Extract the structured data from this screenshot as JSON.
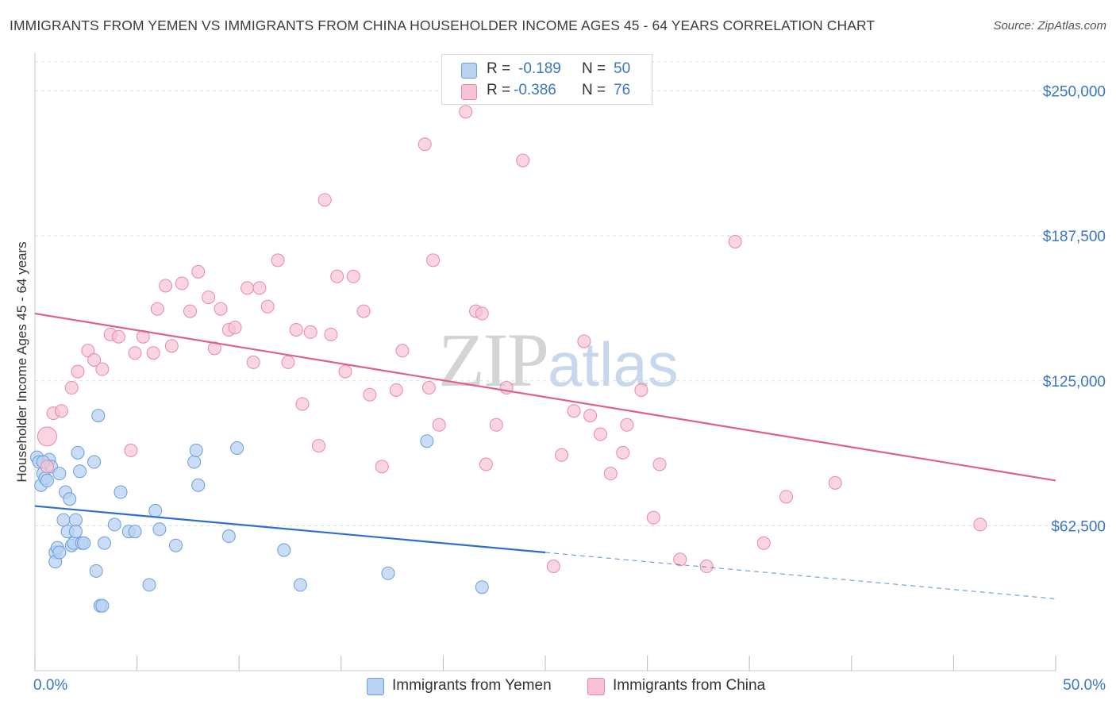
{
  "title": "IMMIGRANTS FROM YEMEN VS IMMIGRANTS FROM CHINA HOUSEHOLDER INCOME AGES 45 - 64 YEARS CORRELATION CHART",
  "source": "Source: ZipAtlas.com",
  "watermark": {
    "zip": "ZIP",
    "atlas": "atlas"
  },
  "legend": {
    "r_label": "R =",
    "n_label": "N =",
    "yemen": {
      "r": "-0.189",
      "n": "50"
    },
    "china": {
      "r": "-0.386",
      "n": "76"
    }
  },
  "colors": {
    "yemen_fill": "#b8d2f2",
    "yemen_stroke": "#6a9fdc",
    "yemen_line": "#2f6fcc",
    "china_fill": "#f7c3d3",
    "china_stroke": "#e889a8",
    "china_line": "#e0608a",
    "tick_text": "#3b78c3",
    "grid": "#dddddd"
  },
  "chart_data": {
    "type": "scatter",
    "title": "IMMIGRANTS FROM YEMEN VS IMMIGRANTS FROM CHINA HOUSEHOLDER INCOME AGES 45 - 64 YEARS CORRELATION CHART",
    "xlabel": "",
    "ylabel": "Householder Income Ages 45 - 64 years",
    "xlim": [
      0,
      50
    ],
    "ylim": [
      0,
      262500
    ],
    "x_tick_labels": [
      "0.0%",
      "50.0%"
    ],
    "y_ticks": [
      62500,
      125000,
      187500,
      250000
    ],
    "y_tick_labels": [
      "$62,500",
      "$125,000",
      "$187,500",
      "$250,000"
    ],
    "grid": true,
    "legend_position": "top-center and bottom",
    "series": [
      {
        "name": "Immigrants from Yemen",
        "r": -0.189,
        "n": 50,
        "trend": {
          "x_start": 0,
          "y_start": 71000,
          "x_solid_end": 25,
          "y_solid_end": 51000,
          "x_dash_end": 50,
          "y_dash_end": 31000
        },
        "points": [
          [
            0.1,
            92000
          ],
          [
            0.2,
            90000
          ],
          [
            0.3,
            80000
          ],
          [
            0.4,
            85000
          ],
          [
            0.5,
            83000
          ],
          [
            0.6,
            82000
          ],
          [
            0.7,
            91000
          ],
          [
            0.8,
            88000
          ],
          [
            1.0,
            51000
          ],
          [
            1.0,
            47000
          ],
          [
            1.1,
            53000
          ],
          [
            1.2,
            85000
          ],
          [
            1.2,
            51000
          ],
          [
            1.4,
            65000
          ],
          [
            1.5,
            77000
          ],
          [
            1.6,
            60000
          ],
          [
            1.7,
            74000
          ],
          [
            1.8,
            54000
          ],
          [
            1.9,
            55000
          ],
          [
            2.0,
            65000
          ],
          [
            2.0,
            60000
          ],
          [
            2.1,
            94000
          ],
          [
            2.2,
            86000
          ],
          [
            2.3,
            55000
          ],
          [
            2.4,
            55000
          ],
          [
            2.9,
            90000
          ],
          [
            3.0,
            43000
          ],
          [
            3.1,
            110000
          ],
          [
            3.2,
            28000
          ],
          [
            3.3,
            28000
          ],
          [
            3.4,
            55000
          ],
          [
            3.9,
            63000
          ],
          [
            4.2,
            77000
          ],
          [
            4.6,
            60000
          ],
          [
            4.9,
            60000
          ],
          [
            5.6,
            37000
          ],
          [
            5.9,
            69000
          ],
          [
            6.1,
            61000
          ],
          [
            6.9,
            54000
          ],
          [
            7.8,
            90000
          ],
          [
            7.9,
            95000
          ],
          [
            8.0,
            80000
          ],
          [
            9.5,
            58000
          ],
          [
            9.9,
            96000
          ],
          [
            12.2,
            52000
          ],
          [
            13.0,
            37000
          ],
          [
            17.3,
            42000
          ],
          [
            19.2,
            99000
          ],
          [
            21.9,
            36000
          ],
          [
            0.4,
            90000
          ]
        ]
      },
      {
        "name": "Immigrants from China",
        "r": -0.386,
        "n": 76,
        "trend": {
          "x_start": 0,
          "y_start": 154000,
          "x_end": 50,
          "y_end": 82000
        },
        "points": [
          [
            0.6,
            101000
          ],
          [
            0.6,
            88000
          ],
          [
            0.9,
            111000
          ],
          [
            1.3,
            112000
          ],
          [
            1.8,
            122000
          ],
          [
            2.1,
            129000
          ],
          [
            2.6,
            138000
          ],
          [
            2.9,
            134000
          ],
          [
            3.3,
            130000
          ],
          [
            3.7,
            145000
          ],
          [
            4.1,
            144000
          ],
          [
            4.7,
            95000
          ],
          [
            4.9,
            137000
          ],
          [
            5.3,
            144000
          ],
          [
            5.8,
            137000
          ],
          [
            6.0,
            156000
          ],
          [
            6.4,
            166000
          ],
          [
            6.7,
            140000
          ],
          [
            7.2,
            167000
          ],
          [
            7.6,
            155000
          ],
          [
            8.0,
            172000
          ],
          [
            8.5,
            161000
          ],
          [
            8.8,
            139000
          ],
          [
            9.1,
            156000
          ],
          [
            9.5,
            147000
          ],
          [
            9.8,
            148000
          ],
          [
            10.4,
            165000
          ],
          [
            10.7,
            133000
          ],
          [
            11.0,
            165000
          ],
          [
            11.4,
            157000
          ],
          [
            11.9,
            177000
          ],
          [
            12.4,
            133000
          ],
          [
            12.8,
            147000
          ],
          [
            13.1,
            115000
          ],
          [
            13.5,
            146000
          ],
          [
            13.9,
            97000
          ],
          [
            14.2,
            203000
          ],
          [
            14.5,
            145000
          ],
          [
            14.8,
            170000
          ],
          [
            15.2,
            129000
          ],
          [
            15.6,
            170000
          ],
          [
            16.1,
            155000
          ],
          [
            16.4,
            119000
          ],
          [
            17.0,
            88000
          ],
          [
            17.7,
            121000
          ],
          [
            18.0,
            138000
          ],
          [
            19.1,
            227000
          ],
          [
            19.3,
            122000
          ],
          [
            19.5,
            177000
          ],
          [
            19.8,
            106000
          ],
          [
            21.1,
            241000
          ],
          [
            21.6,
            155000
          ],
          [
            21.9,
            154000
          ],
          [
            22.1,
            89000
          ],
          [
            22.6,
            106000
          ],
          [
            23.1,
            122000
          ],
          [
            23.9,
            220000
          ],
          [
            25.4,
            45000
          ],
          [
            25.8,
            93000
          ],
          [
            26.4,
            112000
          ],
          [
            26.9,
            142000
          ],
          [
            27.2,
            110000
          ],
          [
            27.7,
            102000
          ],
          [
            28.2,
            85000
          ],
          [
            28.8,
            94000
          ],
          [
            29.0,
            106000
          ],
          [
            29.7,
            121000
          ],
          [
            30.3,
            66000
          ],
          [
            30.6,
            89000
          ],
          [
            31.6,
            48000
          ],
          [
            32.9,
            45000
          ],
          [
            34.3,
            185000
          ],
          [
            35.7,
            55000
          ],
          [
            36.8,
            75000
          ],
          [
            39.2,
            81000
          ],
          [
            46.3,
            63000
          ]
        ]
      }
    ]
  },
  "bottom_legend": {
    "yemen": "Immigrants from Yemen",
    "china": "Immigrants from China"
  }
}
